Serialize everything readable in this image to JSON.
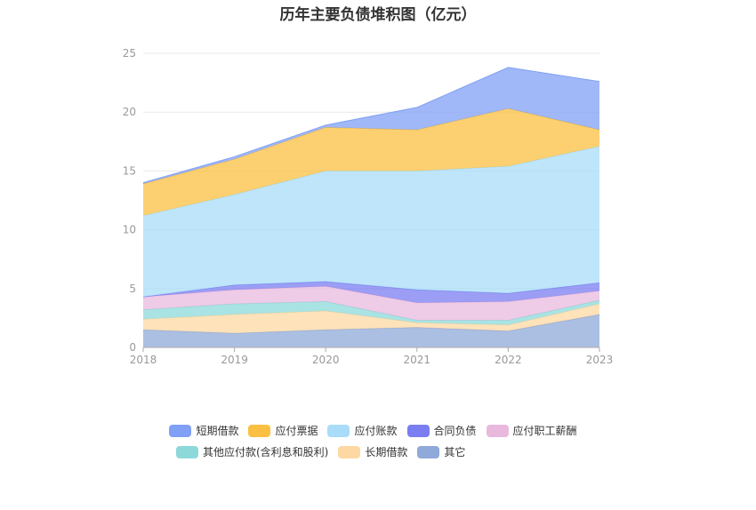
{
  "chart_data": {
    "type": "area",
    "stacked": true,
    "title": "历年主要负债堆积图（亿元）",
    "x": [
      "2018",
      "2019",
      "2020",
      "2021",
      "2022",
      "2023"
    ],
    "ylim": [
      0,
      25
    ],
    "yticks": [
      0,
      5,
      10,
      15,
      20,
      25
    ],
    "grid": true,
    "legend_position": "bottom",
    "series": [
      {
        "name": "其它",
        "color": "#8fa9d8",
        "values": [
          1.5,
          1.2,
          1.5,
          1.7,
          1.4,
          2.8
        ]
      },
      {
        "name": "长期借款",
        "color": "#fdd8a3",
        "values": [
          0.9,
          1.6,
          1.6,
          0.4,
          0.5,
          0.9
        ]
      },
      {
        "name": "其他应付款(含利息和股利)",
        "color": "#8dd9d9",
        "values": [
          0.8,
          0.9,
          0.8,
          0.2,
          0.4,
          0.3
        ]
      },
      {
        "name": "应付职工薪酬",
        "color": "#e8b9dd",
        "values": [
          1.1,
          1.2,
          1.3,
          1.5,
          1.6,
          0.8
        ]
      },
      {
        "name": "合同负债",
        "color": "#7a7ef0",
        "values": [
          0.0,
          0.4,
          0.4,
          1.1,
          0.7,
          0.7
        ]
      },
      {
        "name": "应付账款",
        "color": "#a8dcf8",
        "values": [
          6.9,
          7.7,
          9.4,
          10.1,
          10.8,
          11.6
        ]
      },
      {
        "name": "应付票据",
        "color": "#fbc042",
        "values": [
          2.7,
          3.0,
          3.7,
          3.5,
          4.9,
          1.4
        ]
      },
      {
        "name": "短期借款",
        "color": "#80a0f5",
        "values": [
          0.1,
          0.2,
          0.2,
          1.9,
          3.5,
          4.1
        ]
      }
    ],
    "legend_order": [
      "短期借款",
      "应付票据",
      "应付账款",
      "合同负债",
      "应付职工薪酬",
      "其他应付款(含利息和股利)",
      "长期借款",
      "其它"
    ]
  }
}
